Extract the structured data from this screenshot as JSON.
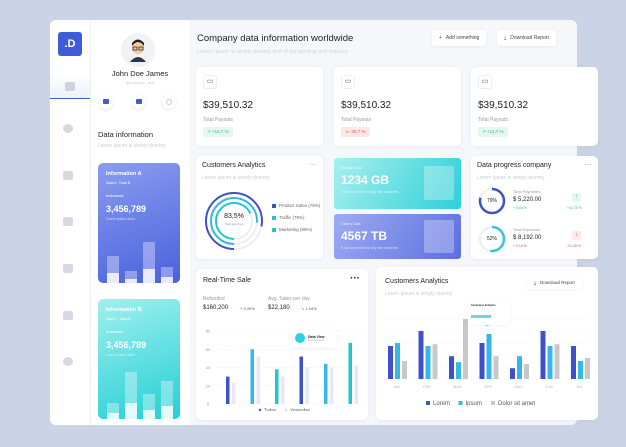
{
  "brand": {
    "logo": ".D"
  },
  "profile": {
    "name": "John Doe James",
    "handle": "@userjohn_doe"
  },
  "data_info": {
    "title": "Data information",
    "subtitle": "Lorem Ipsum is simply dummy"
  },
  "info_cards": [
    {
      "title": "Information A",
      "tags": "Data A  ·  Data B",
      "region": "Indonesia",
      "value": "3,456,789",
      "caption": "Lorem ipsum dolor",
      "bars": [
        0.5,
        0.22,
        0.75,
        0.3
      ]
    },
    {
      "title": "Information B",
      "tags": "Data C  ·  Data D",
      "region": "Indonesia",
      "value": "3,456,789",
      "caption": "Lorem ipsum dolor",
      "bars": [
        0.3,
        0.85,
        0.45,
        0.7
      ]
    }
  ],
  "header": {
    "title": "Company data information worldwide",
    "subtitle": "Lorem Ipsum is simply dummy text of the printing and industry",
    "add_label": "Add something",
    "download_label": "Download Report"
  },
  "stats": [
    {
      "icon": "card-icon",
      "value": "$39,510.32",
      "label": "Total Payouts",
      "change": "+12,7 %",
      "trend": "up"
    },
    {
      "icon": "save-icon",
      "value": "$39,510.32",
      "label": "Total Payouts",
      "change": "-38,7 %",
      "trend": "down"
    },
    {
      "icon": "backspace-icon",
      "value": "$39,510.32",
      "label": "Total Payouts",
      "change": "+12,7 %",
      "trend": "up"
    }
  ],
  "customers_donut": {
    "title": "Customers Analytics",
    "subtitle": "Lorem Ipsum is simply dummy",
    "center_value": "83,5%",
    "center_label": "Total Earnings",
    "legend": [
      {
        "label": "Product Sales (78%)",
        "color": "#3f51c8",
        "pct": 78
      },
      {
        "label": "Traffic (76%)",
        "color": "#35b8e0",
        "pct": 76
      },
      {
        "label": "Marketing (68%)",
        "color": "#1fc8c8",
        "pct": 68
      }
    ]
  },
  "storage": {
    "label": "Storage Data",
    "value": "1234 GB",
    "desc": "It has survived not only five centuries"
  },
  "gallery": {
    "label": "Gallery Data",
    "value": "4567 TB",
    "desc": "It has survived not only five centuries"
  },
  "progress": {
    "title": "Data progress company",
    "subtitle": "Lorem Ipsum is simply dummy",
    "items": [
      {
        "pct": 79,
        "pct_label": "79%",
        "label": "Total Payments",
        "value": "$ 5,220.00",
        "sub": "+ 9,64 %",
        "change": "+11,75 %",
        "trend": "up",
        "color": "#3f51c8"
      },
      {
        "pct": 52,
        "pct_label": "52%",
        "label": "Total Expenses",
        "value": "$ 8,192.00",
        "sub": "+ 5,15 %",
        "change": "-21,45 %",
        "trend": "down",
        "color": "#35c6d8"
      }
    ]
  },
  "realtime": {
    "title": "Real-Time Sale",
    "refunded_label": "Refunded",
    "refunded": "$160,200",
    "refunded_change": "0.20%",
    "avg_label": "Avg. Sales per day",
    "avg": "$22,180",
    "avg_change": "1.04%",
    "tooltip_title": "Data View",
    "tooltip_sub": "For Description"
  },
  "customers_bar": {
    "title": "Customers Analytics",
    "subtitle": "Lorem Ipsum is simply dummy",
    "download_label": "Download Report",
    "tooltip_title": "Customers Analytics"
  },
  "chart_data": [
    {
      "type": "bar",
      "ylim": [
        0,
        80
      ],
      "yticks": [
        0,
        20,
        40,
        60,
        80
      ],
      "categories": [
        "",
        "",
        "",
        "",
        "",
        ""
      ],
      "series": [
        {
          "name": "Today",
          "values": [
            30,
            60,
            38,
            52,
            44,
            67
          ]
        },
        {
          "name": "Yesterday",
          "values": [
            23,
            52,
            30,
            40,
            40,
            42
          ]
        }
      ],
      "grid": true,
      "legend": "bottom"
    },
    {
      "type": "bar",
      "categories": [
        "JAN",
        "FEB",
        "MAR",
        "APR",
        "MAY",
        "JUN",
        "JUL"
      ],
      "ylim": [
        0,
        100
      ],
      "series": [
        {
          "name": "Lorem",
          "values": [
            55,
            80,
            38,
            60,
            18,
            80,
            55
          ],
          "color": "#3f51c8"
        },
        {
          "name": "Ipsum",
          "values": [
            60,
            55,
            28,
            75,
            38,
            55,
            30
          ],
          "color": "#35b8e8"
        },
        {
          "name": "Dolor sit amet",
          "values": [
            30,
            58,
            100,
            38,
            25,
            58,
            35
          ],
          "color": "#c8c8c8"
        }
      ],
      "grid": true,
      "legend": "bottom"
    }
  ]
}
